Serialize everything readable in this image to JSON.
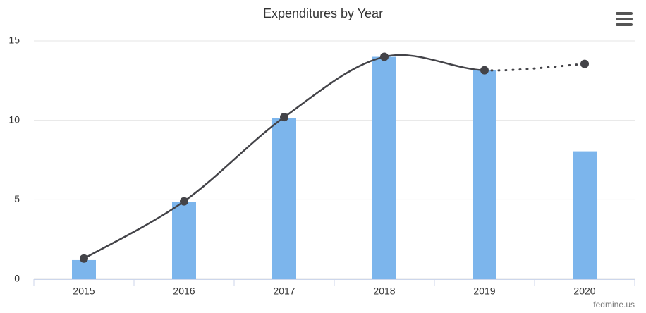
{
  "chart_data": {
    "type": "combo",
    "title": "Expenditures by Year",
    "credits": "fedmine.us",
    "categories": [
      "2015",
      "2016",
      "2017",
      "2018",
      "2019",
      "2020"
    ],
    "bars": {
      "color": "#7cb5ec",
      "values": [
        1.2,
        4.85,
        10.15,
        14.0,
        13.15,
        8.05
      ]
    },
    "line": {
      "color": "#434348",
      "values": [
        1.3,
        4.9,
        10.2,
        14.0,
        13.15,
        13.55
      ],
      "dotted_from_index": 4,
      "smooth": true
    },
    "ylim": [
      0,
      15
    ],
    "yticks": [
      0,
      5,
      10,
      15
    ],
    "grid": true
  }
}
